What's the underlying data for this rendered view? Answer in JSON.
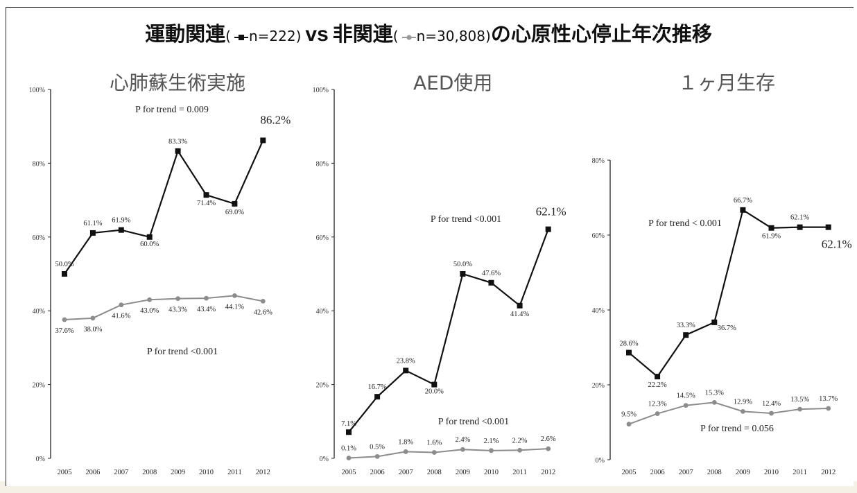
{
  "header": {
    "title_part1": "運動関連",
    "legend_related": "n=222",
    "vs": "vs",
    "title_part2": "非関連",
    "legend_unrelated": "n=30,808",
    "title_part3": "の心原性心停止年次推移"
  },
  "colors": {
    "related": "#111111",
    "unrelated": "#8c8c8c",
    "axis": "#222222"
  },
  "chart_data": [
    {
      "type": "line",
      "title": "心肺蘇生術実施",
      "x": [
        "2005",
        "2006",
        "2007",
        "2008",
        "2009",
        "2010",
        "2011",
        "2012"
      ],
      "ylim": [
        0,
        100
      ],
      "yticks": [
        "0%",
        "20%",
        "40%",
        "60%",
        "80%",
        "100%"
      ],
      "series": [
        {
          "values": [
            50.0,
            61.1,
            61.9,
            60.0,
            83.3,
            71.4,
            69.0,
            86.2
          ],
          "labels": [
            "50.0%",
            "61.1%",
            "61.9%",
            "60.0%",
            "83.3%",
            "71.4%",
            "69.0%",
            "86.2%"
          ]
        },
        {
          "values": [
            37.6,
            38.0,
            41.6,
            43.0,
            43.3,
            43.4,
            44.1,
            42.6
          ],
          "labels": [
            "37.6%",
            "38.0%",
            "41.6%",
            "43.0%",
            "43.3%",
            "43.4%",
            "44.1%",
            "42.6%"
          ]
        }
      ],
      "annotations": [
        "P for trend = 0.009",
        "P for trend <0.001"
      ]
    },
    {
      "type": "line",
      "title": "AED使用",
      "x": [
        "2005",
        "2006",
        "2007",
        "2008",
        "2009",
        "2010",
        "2011",
        "2012"
      ],
      "ylim": [
        0,
        100
      ],
      "yticks": [
        "0%",
        "20%",
        "40%",
        "60%",
        "80%",
        "100%"
      ],
      "series": [
        {
          "values": [
            7.1,
            16.7,
            23.8,
            20.0,
            50.0,
            47.6,
            41.4,
            62.1
          ],
          "labels": [
            "7.1%",
            "16.7%",
            "23.8%",
            "20.0%",
            "50.0%",
            "47.6%",
            "41.4%",
            "62.1%"
          ]
        },
        {
          "values": [
            0.1,
            0.5,
            1.8,
            1.6,
            2.4,
            2.1,
            2.2,
            2.6
          ],
          "labels": [
            "0.1%",
            "0.5%",
            "1.8%",
            "1.6%",
            "2.4%",
            "2.1%",
            "2.2%",
            "2.6%"
          ]
        }
      ],
      "annotations": [
        "P for trend <0.001",
        "P for trend <0.001"
      ]
    },
    {
      "type": "line",
      "title": "１ヶ月生存",
      "x": [
        "2005",
        "2006",
        "2007",
        "2008",
        "2009",
        "2010",
        "2011",
        "2012"
      ],
      "ylim": [
        0,
        80
      ],
      "yticks": [
        "0%",
        "20%",
        "40%",
        "60%",
        "80%"
      ],
      "series": [
        {
          "values": [
            28.6,
            22.2,
            33.3,
            36.7,
            66.7,
            61.9,
            62.1,
            62.1
          ],
          "labels": [
            "28.6%",
            "22.2%",
            "33.3%",
            "36.7%",
            "66.7%",
            "61.9%",
            "62.1%",
            "62.1%"
          ]
        },
        {
          "values": [
            9.5,
            12.3,
            14.5,
            15.3,
            12.9,
            12.4,
            13.5,
            13.7
          ],
          "labels": [
            "9.5%",
            "12.3%",
            "14.5%",
            "15.3%",
            "12.9%",
            "12.4%",
            "13.5%",
            "13.7%"
          ]
        }
      ],
      "annotations": [
        "P for trend < 0.001",
        "P for trend = 0.056"
      ]
    }
  ]
}
